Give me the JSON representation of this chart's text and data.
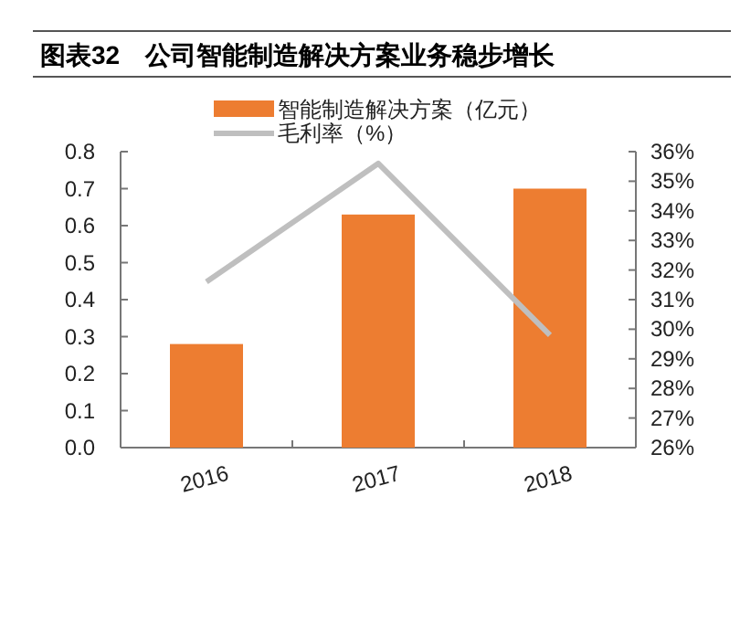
{
  "chart_data": {
    "type": "bar",
    "title": "图表32　公司智能制造解决方案业务稳步增长",
    "categories": [
      "2016",
      "2017",
      "2018"
    ],
    "series": [
      {
        "name": "智能制造解决方案（亿元）",
        "color": "#ed7d31",
        "values": [
          0.28,
          0.63,
          0.7
        ]
      },
      {
        "name": "毛利率（%）",
        "type": "line",
        "axis": "y2",
        "color": "#bfbfbf",
        "values": [
          31.6,
          35.6,
          29.8
        ]
      }
    ],
    "ylim": [
      0,
      0.8
    ],
    "yticks": [
      {
        "value": 0,
        "label": "0.0"
      },
      0.1,
      0.2,
      0.3,
      0.4,
      0.5,
      0.6,
      0.7,
      0.8
    ],
    "y2lim": [
      26,
      36
    ],
    "y2ticks": [
      {
        "value": 26,
        "label": "26%"
      },
      {
        "value": 27,
        "label": "27%"
      },
      {
        "value": 28,
        "label": "28%"
      },
      {
        "value": 29,
        "label": "29%"
      },
      {
        "value": 30,
        "label": "30%"
      },
      {
        "value": 31,
        "label": "31%"
      },
      {
        "value": 32,
        "label": "32%"
      },
      {
        "value": 33,
        "label": "33%"
      },
      {
        "value": 34,
        "label": "34%"
      },
      {
        "value": 35,
        "label": "35%"
      },
      {
        "value": 36,
        "label": "36%"
      }
    ],
    "legend": "top",
    "marker": "none",
    "line_style": "solid"
  }
}
